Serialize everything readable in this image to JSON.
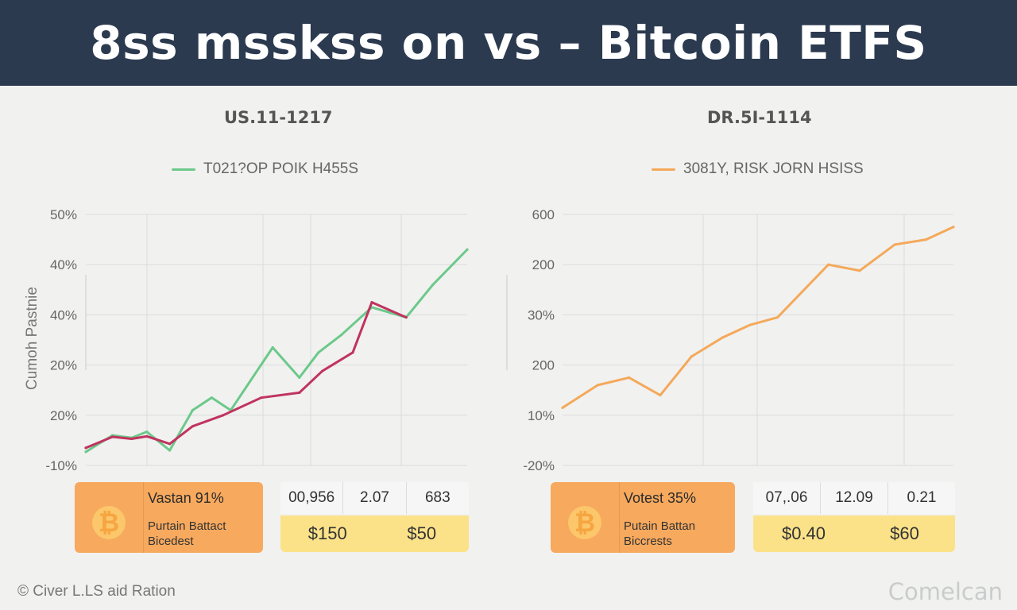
{
  "header": {
    "title": "8ss msskss on vs – Bitcoin ETFS"
  },
  "colors": {
    "header_bg": "#2c3a50",
    "green": "#6cc98a",
    "crimson": "#c0345f",
    "orange": "#f4a95a",
    "card_orange": "#f7a95e",
    "value_yellow": "#fbe289"
  },
  "left_panel": {
    "title": "US.11-1217",
    "legend": {
      "label": "T021?OP POIK H455S"
    },
    "card": {
      "icon": "bitcoin-icon",
      "symbol": "₿",
      "title": "Vastan 91%",
      "subtitle": "Purtain Battact Bicedest"
    },
    "metrics": {
      "top": [
        "00,956",
        "2.07",
        "683"
      ],
      "bottom": [
        "$150",
        "$50"
      ]
    }
  },
  "right_panel": {
    "title": "DR.5I-1114",
    "legend": {
      "label": "3081Y, RISK JORN HSISS"
    },
    "card": {
      "icon": "bitcoin-icon",
      "symbol": "₿",
      "title": "Votest 35%",
      "subtitle": "Putain Battan Biccrests"
    },
    "metrics": {
      "top": [
        "07,.06",
        "12.09",
        "0.21"
      ],
      "bottom": [
        "$0.40",
        "$60"
      ]
    }
  },
  "chart_data": [
    {
      "type": "line",
      "ylabel": "Cumoh Pastnie",
      "yticks": [
        "-10%",
        "20%",
        "20%",
        "40%",
        "40%",
        "50%"
      ],
      "ylim": [
        0,
        5
      ],
      "xlim": [
        0,
        100
      ],
      "grid": true,
      "series": [
        {
          "name": "T021?OP POIK H455S",
          "color": "#6cc98a",
          "x": [
            0,
            7,
            12,
            16,
            22,
            28,
            33,
            38,
            49,
            56,
            61,
            67,
            75,
            84,
            91,
            100
          ],
          "y": [
            0.27,
            0.6,
            0.55,
            0.67,
            0.3,
            1.1,
            1.35,
            1.1,
            2.35,
            1.75,
            2.25,
            2.6,
            3.15,
            2.95,
            3.6,
            4.3
          ]
        },
        {
          "color": "#c0345f",
          "x": [
            0,
            7,
            12,
            16,
            22,
            28,
            36,
            46,
            56,
            62,
            70,
            75,
            84
          ],
          "y": [
            0.35,
            0.57,
            0.53,
            0.58,
            0.43,
            0.78,
            1.0,
            1.35,
            1.45,
            1.88,
            2.25,
            3.25,
            2.95
          ]
        }
      ]
    },
    {
      "type": "line",
      "ylabel": "",
      "yticks": [
        "-20%",
        "10%",
        "200",
        "30%",
        "200",
        "600"
      ],
      "ylim": [
        0,
        5
      ],
      "xlim": [
        0,
        100
      ],
      "grid": true,
      "series": [
        {
          "name": "3081Y, RISK JORN HSISS",
          "color": "#f4a95a",
          "x": [
            0,
            9,
            17,
            25,
            33,
            41,
            48,
            55,
            68,
            76,
            85,
            93,
            100
          ],
          "y": [
            1.15,
            1.6,
            1.75,
            1.4,
            2.17,
            2.55,
            2.8,
            2.95,
            4.0,
            3.88,
            4.4,
            4.5,
            4.75
          ]
        }
      ]
    }
  ],
  "footer": {
    "left_icon": "copyright-icon",
    "left_text": "© Civer L.LS aid Ration",
    "right_text": "Comelcan"
  }
}
